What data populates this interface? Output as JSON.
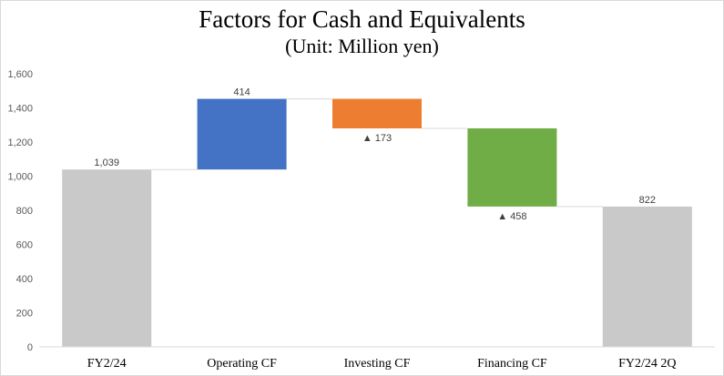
{
  "chart_data": {
    "type": "bar",
    "title": "Factors for Cash and Equivalents",
    "subtitle": "(Unit: Million yen)",
    "categories": [
      "FY2/24",
      "Operating CF",
      "Investing CF",
      "Financing CF",
      "FY2/24 2Q"
    ],
    "bars": [
      {
        "category": "FY2/24",
        "start": 0,
        "end": 1039,
        "label": "1,039",
        "color": "#c9c9c9",
        "negative": false
      },
      {
        "category": "Operating CF",
        "start": 1039,
        "end": 1453,
        "label": "414",
        "color": "#4472c4",
        "negative": false
      },
      {
        "category": "Investing CF",
        "start": 1453,
        "end": 1280,
        "label": "173",
        "color": "#ed7d31",
        "negative": true
      },
      {
        "category": "Financing CF",
        "start": 1280,
        "end": 822,
        "label": "458",
        "color": "#70ad47",
        "negative": true
      },
      {
        "category": "FY2/24 2Q",
        "start": 0,
        "end": 822,
        "label": "822",
        "color": "#c9c9c9",
        "negative": false
      }
    ],
    "ylim": [
      0,
      1600
    ],
    "yticks": [
      "0",
      "200",
      "400",
      "600",
      "800",
      "1,000",
      "1,200",
      "1,400",
      "1,600"
    ],
    "ytick_values": [
      0,
      200,
      400,
      600,
      800,
      1000,
      1200,
      1400,
      1600
    ],
    "negative_marker": "▲",
    "grid": false,
    "connector_color": "#d9d9d9"
  }
}
